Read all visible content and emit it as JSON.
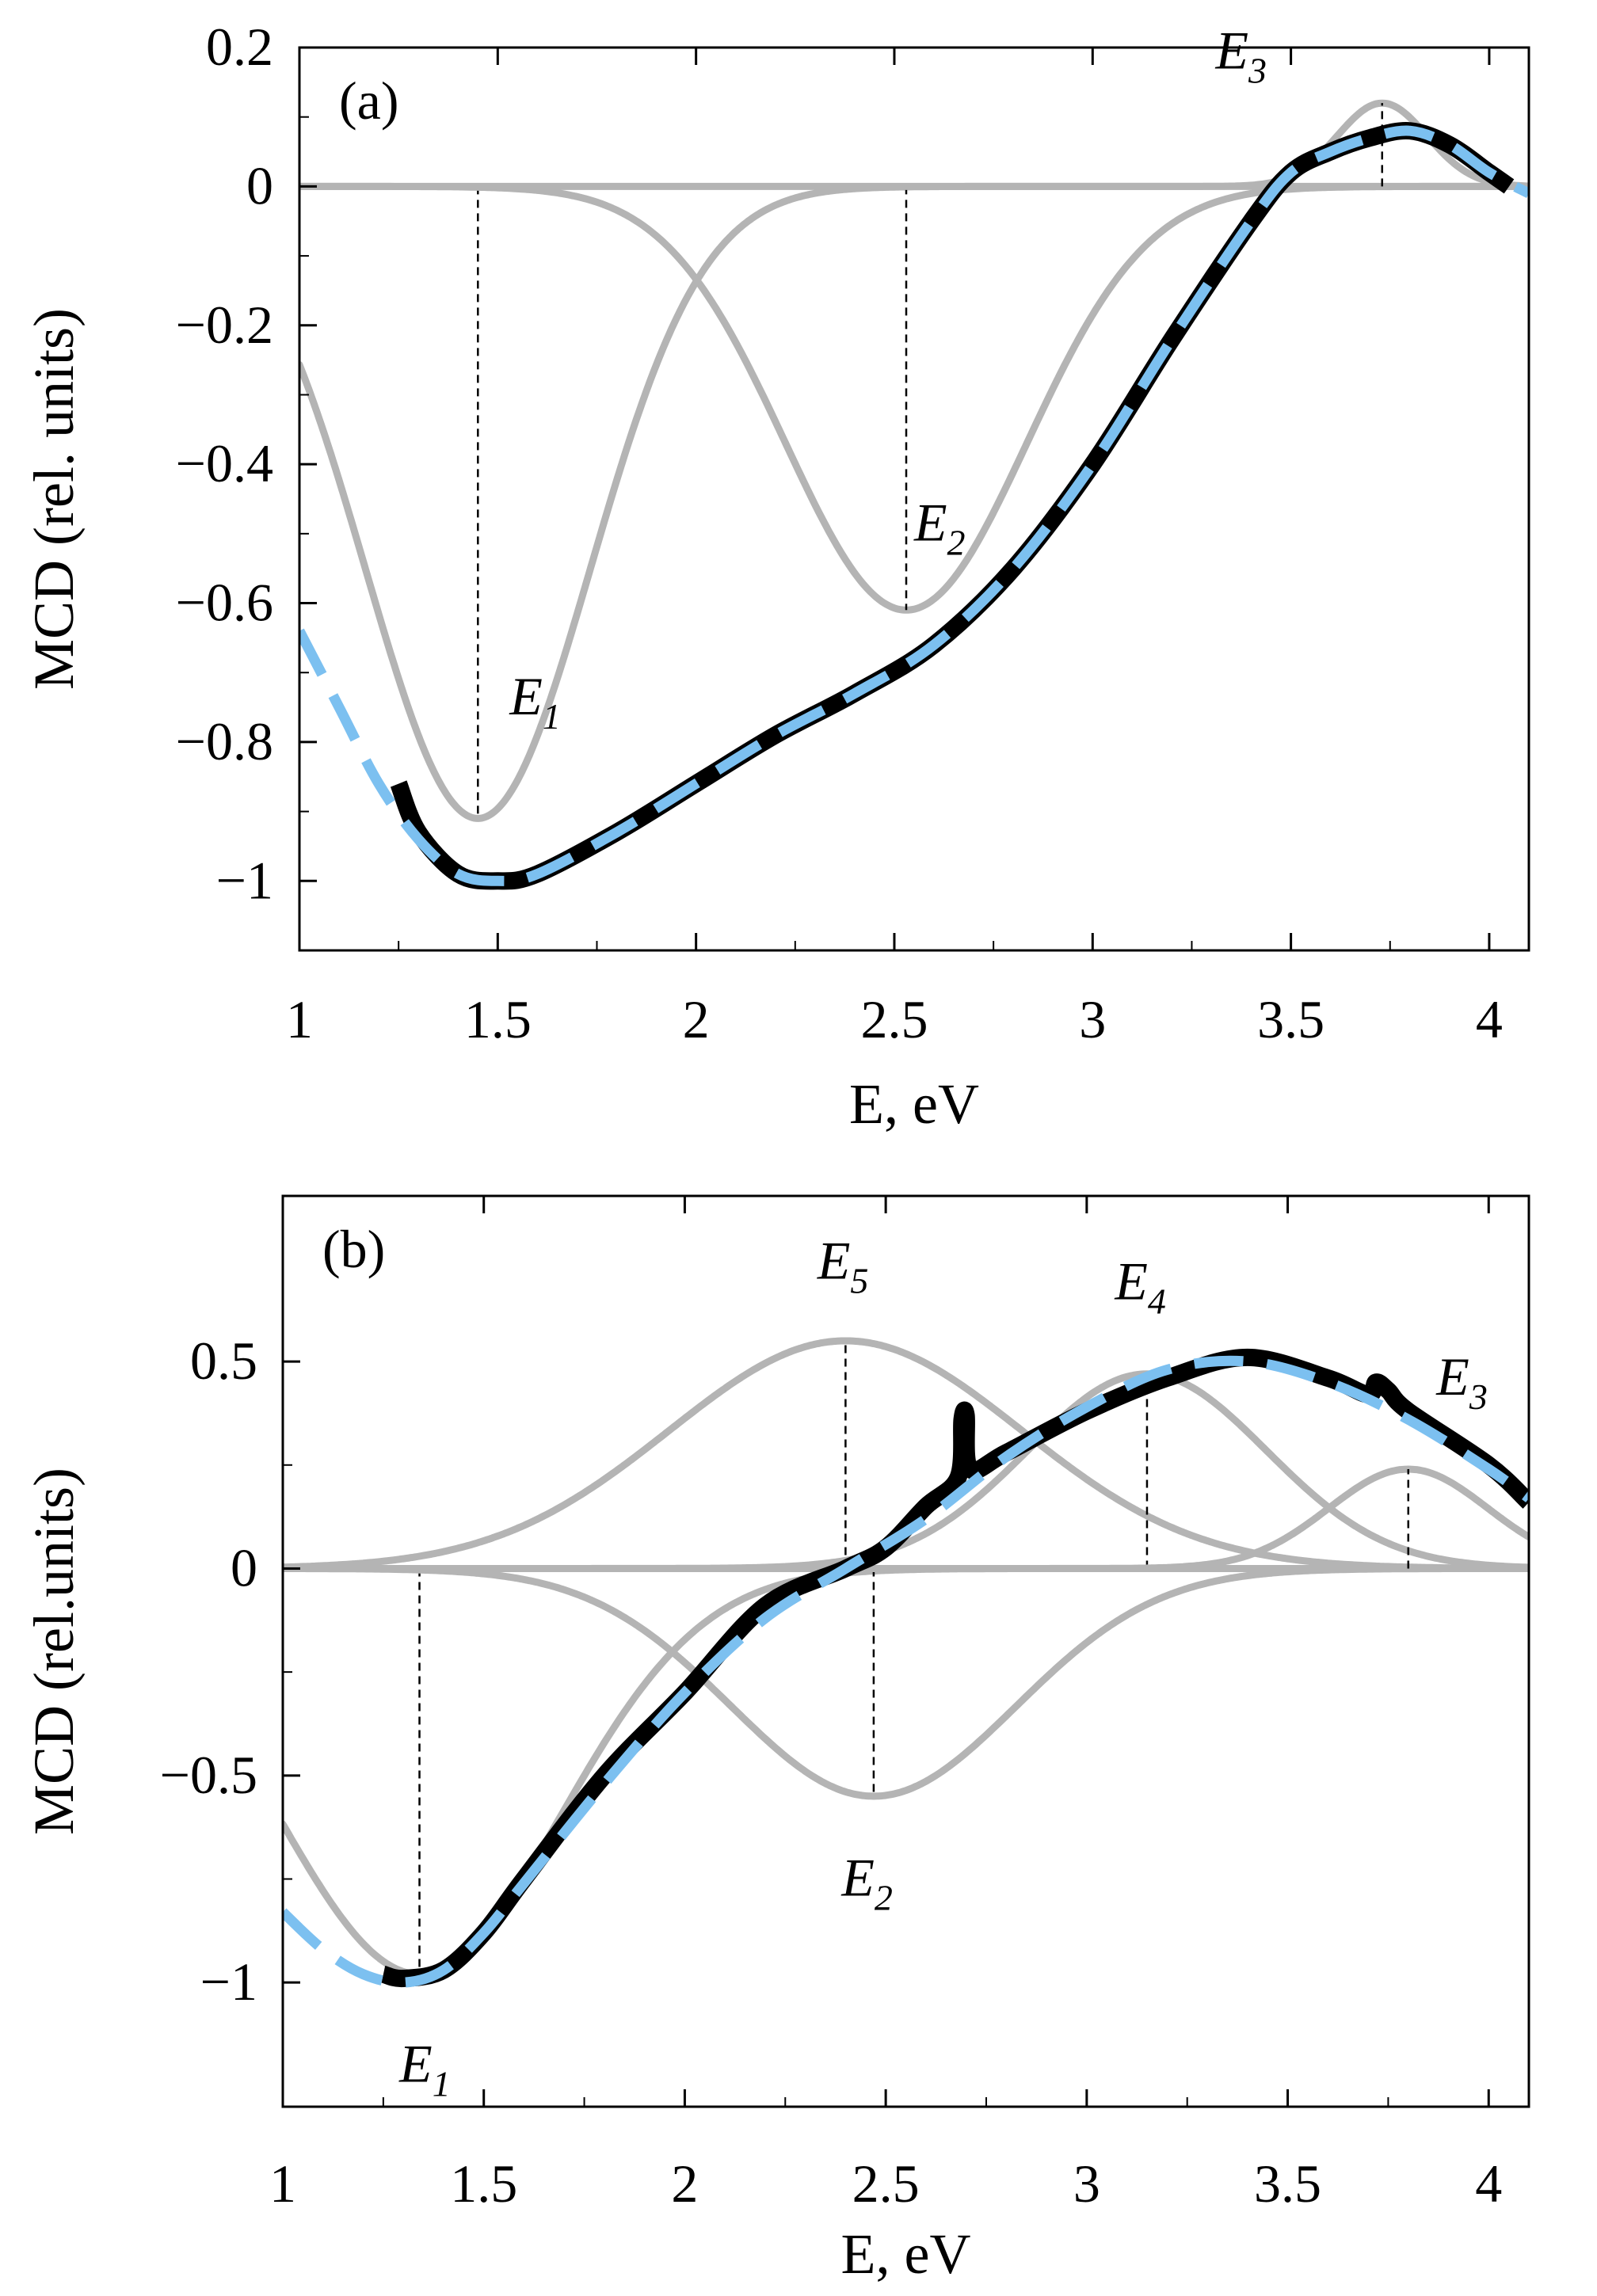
{
  "chart_data": [
    {
      "type": "line",
      "panel_label": "(a)",
      "xlabel": "E, eV",
      "ylabel": "MCD (rel. units)",
      "xlim": [
        1,
        4.1
      ],
      "ylim": [
        -1.1,
        0.2
      ],
      "xticks": [
        1,
        1.5,
        2,
        2.5,
        3,
        3.5,
        4
      ],
      "xtick_labels": [
        "1",
        "1.5",
        "2",
        "2.5",
        "3",
        "3.5",
        "4"
      ],
      "yticks": [
        0.2,
        0,
        -0.2,
        -0.4,
        -0.6,
        -0.8,
        -1
      ],
      "ytick_labels": [
        "0.2",
        "0",
        "−0.2",
        "−0.4",
        "−0.6",
        "−0.8",
        "−1"
      ],
      "grid": false,
      "zero_line": true,
      "components": [
        {
          "name": "E1",
          "center": 1.45,
          "amplitude": -0.91,
          "width": 0.4
        },
        {
          "name": "E2",
          "center": 2.53,
          "amplitude": -0.61,
          "width": 0.43
        },
        {
          "name": "E3",
          "center": 3.73,
          "amplitude": 0.12,
          "width": 0.16
        }
      ],
      "series": [
        {
          "name": "experiment",
          "style": "black-thick",
          "x": [
            1.25,
            1.3,
            1.4,
            1.5,
            1.6,
            1.8,
            2.0,
            2.2,
            2.4,
            2.6,
            2.8,
            3.0,
            3.2,
            3.4,
            3.5,
            3.6,
            3.7,
            3.8,
            3.9,
            4.0,
            4.05
          ],
          "y": [
            -0.86,
            -0.93,
            -0.99,
            -1.0,
            -0.99,
            -0.93,
            -0.86,
            -0.79,
            -0.73,
            -0.66,
            -0.55,
            -0.4,
            -0.22,
            -0.05,
            0.02,
            0.05,
            0.07,
            0.08,
            0.06,
            0.02,
            0.0
          ]
        },
        {
          "name": "fit",
          "style": "blue-dashed",
          "x": [
            1.0,
            1.1,
            1.2,
            1.3,
            1.4,
            1.5,
            1.6,
            1.8,
            2.0,
            2.2,
            2.4,
            2.6,
            2.8,
            3.0,
            3.2,
            3.4,
            3.5,
            3.6,
            3.7,
            3.8,
            3.9,
            4.0,
            4.1
          ],
          "y": [
            -0.64,
            -0.75,
            -0.86,
            -0.94,
            -0.99,
            -1.0,
            -0.99,
            -0.93,
            -0.86,
            -0.79,
            -0.73,
            -0.66,
            -0.55,
            -0.4,
            -0.22,
            -0.05,
            0.02,
            0.05,
            0.07,
            0.08,
            0.06,
            0.02,
            -0.01
          ]
        }
      ],
      "annotations": [
        {
          "label": "E",
          "subscript": "1",
          "x": 1.53,
          "y": -0.76
        },
        {
          "label": "E",
          "subscript": "2",
          "x": 2.55,
          "y": -0.51
        },
        {
          "label": "E",
          "subscript": "3",
          "x": 3.31,
          "y": 0.17
        }
      ]
    },
    {
      "type": "line",
      "panel_label": "(b)",
      "xlabel": "E, eV",
      "ylabel": "MCD (rel.units)",
      "xlim": [
        1,
        4.1
      ],
      "ylim": [
        -1.3,
        0.9
      ],
      "xticks": [
        1,
        1.5,
        2,
        2.5,
        3,
        3.5,
        4
      ],
      "xtick_labels": [
        "1",
        "1.5",
        "2",
        "2.5",
        "3",
        "3.5",
        "4"
      ],
      "yticks": [
        0.5,
        0,
        -0.5,
        -1
      ],
      "ytick_labels": [
        "0.5",
        "0",
        "−0.5",
        "−1"
      ],
      "grid": false,
      "zero_line": true,
      "components": [
        {
          "name": "E1",
          "center": 1.34,
          "amplitude": -0.98,
          "width": 0.5
        },
        {
          "name": "E2",
          "center": 2.47,
          "amplitude": -0.55,
          "width": 0.5
        },
        {
          "name": "E5",
          "center": 2.4,
          "amplitude": 0.55,
          "width": 0.62
        },
        {
          "name": "E4",
          "center": 3.15,
          "amplitude": 0.47,
          "width": 0.42
        },
        {
          "name": "E3",
          "center": 3.8,
          "amplitude": 0.24,
          "width": 0.28
        }
      ],
      "series": [
        {
          "name": "experiment",
          "style": "black-thick",
          "x": [
            1.25,
            1.3,
            1.4,
            1.5,
            1.6,
            1.8,
            2.0,
            2.2,
            2.4,
            2.5,
            2.6,
            2.68,
            2.69,
            2.7,
            2.71,
            2.8,
            3.0,
            3.2,
            3.4,
            3.6,
            3.7,
            3.72,
            3.75,
            3.8,
            4.0,
            4.1
          ],
          "y": [
            -0.98,
            -0.99,
            -0.97,
            -0.88,
            -0.75,
            -0.5,
            -0.3,
            -0.09,
            0.0,
            0.05,
            0.15,
            0.22,
            0.36,
            0.37,
            0.24,
            0.28,
            0.38,
            0.46,
            0.51,
            0.46,
            0.42,
            0.45,
            0.43,
            0.38,
            0.25,
            0.16
          ]
        },
        {
          "name": "fit",
          "style": "blue-dashed",
          "x": [
            1.0,
            1.1,
            1.2,
            1.3,
            1.4,
            1.5,
            1.6,
            1.8,
            2.0,
            2.2,
            2.4,
            2.6,
            2.8,
            3.0,
            3.2,
            3.4,
            3.6,
            3.8,
            4.0,
            4.1
          ],
          "y": [
            -0.83,
            -0.92,
            -0.98,
            -1.0,
            -0.97,
            -0.88,
            -0.76,
            -0.52,
            -0.3,
            -0.12,
            0.0,
            0.12,
            0.27,
            0.39,
            0.48,
            0.5,
            0.45,
            0.36,
            0.24,
            0.17
          ]
        }
      ],
      "annotations": [
        {
          "label": "E",
          "subscript": "5",
          "x": 2.33,
          "y": 0.7
        },
        {
          "label": "E",
          "subscript": "4",
          "x": 3.07,
          "y": 0.65
        },
        {
          "label": "E",
          "subscript": "3",
          "x": 3.87,
          "y": 0.42
        },
        {
          "label": "E",
          "subscript": "2",
          "x": 2.39,
          "y": -0.79
        },
        {
          "label": "E",
          "subscript": "1",
          "x": 1.29,
          "y": -1.24
        }
      ]
    }
  ],
  "colors": {
    "component": "#b4b4b4",
    "experiment": "#000000",
    "fit": "#7cc0f0",
    "zero_line": "#000000"
  }
}
